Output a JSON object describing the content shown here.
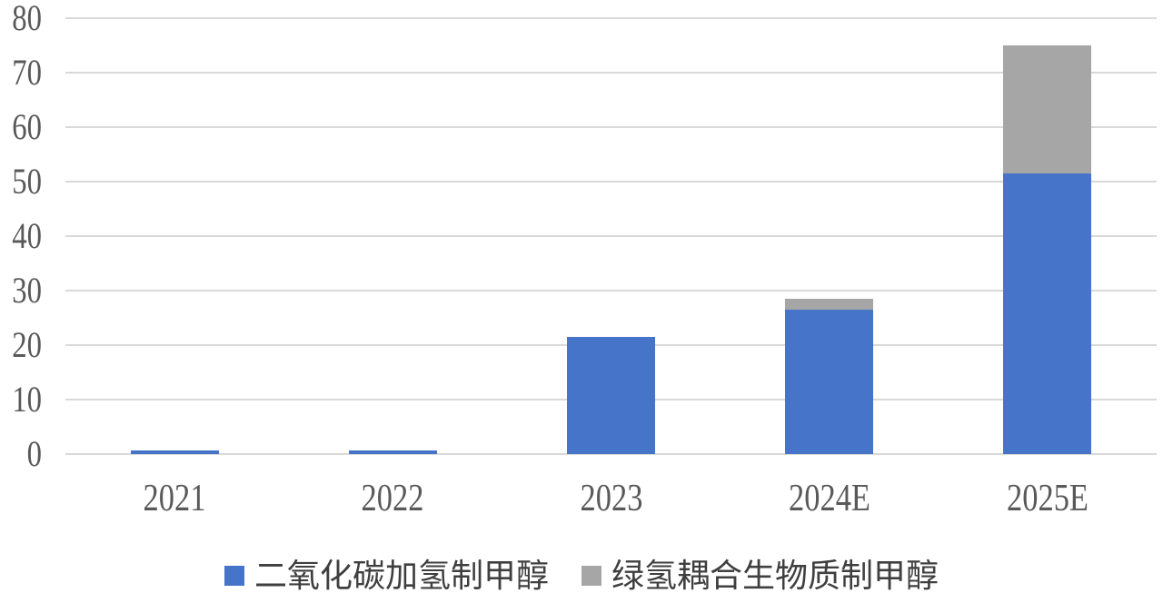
{
  "chart_data": {
    "type": "bar",
    "stacked": true,
    "title": "",
    "xlabel": "",
    "ylabel": "",
    "categories": [
      "2021",
      "2022",
      "2023",
      "2024E",
      "2025E"
    ],
    "series": [
      {
        "name": "二氧化碳加氢制甲醇",
        "color": "#4674C8",
        "values": [
          0.6,
          0.6,
          21.5,
          26.5,
          51.5
        ]
      },
      {
        "name": "绿氢耦合生物质制甲醇",
        "color": "#A6A6A6",
        "values": [
          0,
          0,
          0,
          2,
          23.5
        ]
      }
    ],
    "ylim": [
      0,
      80
    ],
    "yticks": [
      0,
      10,
      20,
      30,
      40,
      50,
      60,
      70,
      80
    ],
    "grid": true,
    "legend_position": "bottom"
  },
  "style": {
    "gridline_color": "#D9D9D9",
    "tick_label_color": "#595959",
    "legend_text_color": "#3F3F3F",
    "background": "#FFFFFF"
  }
}
